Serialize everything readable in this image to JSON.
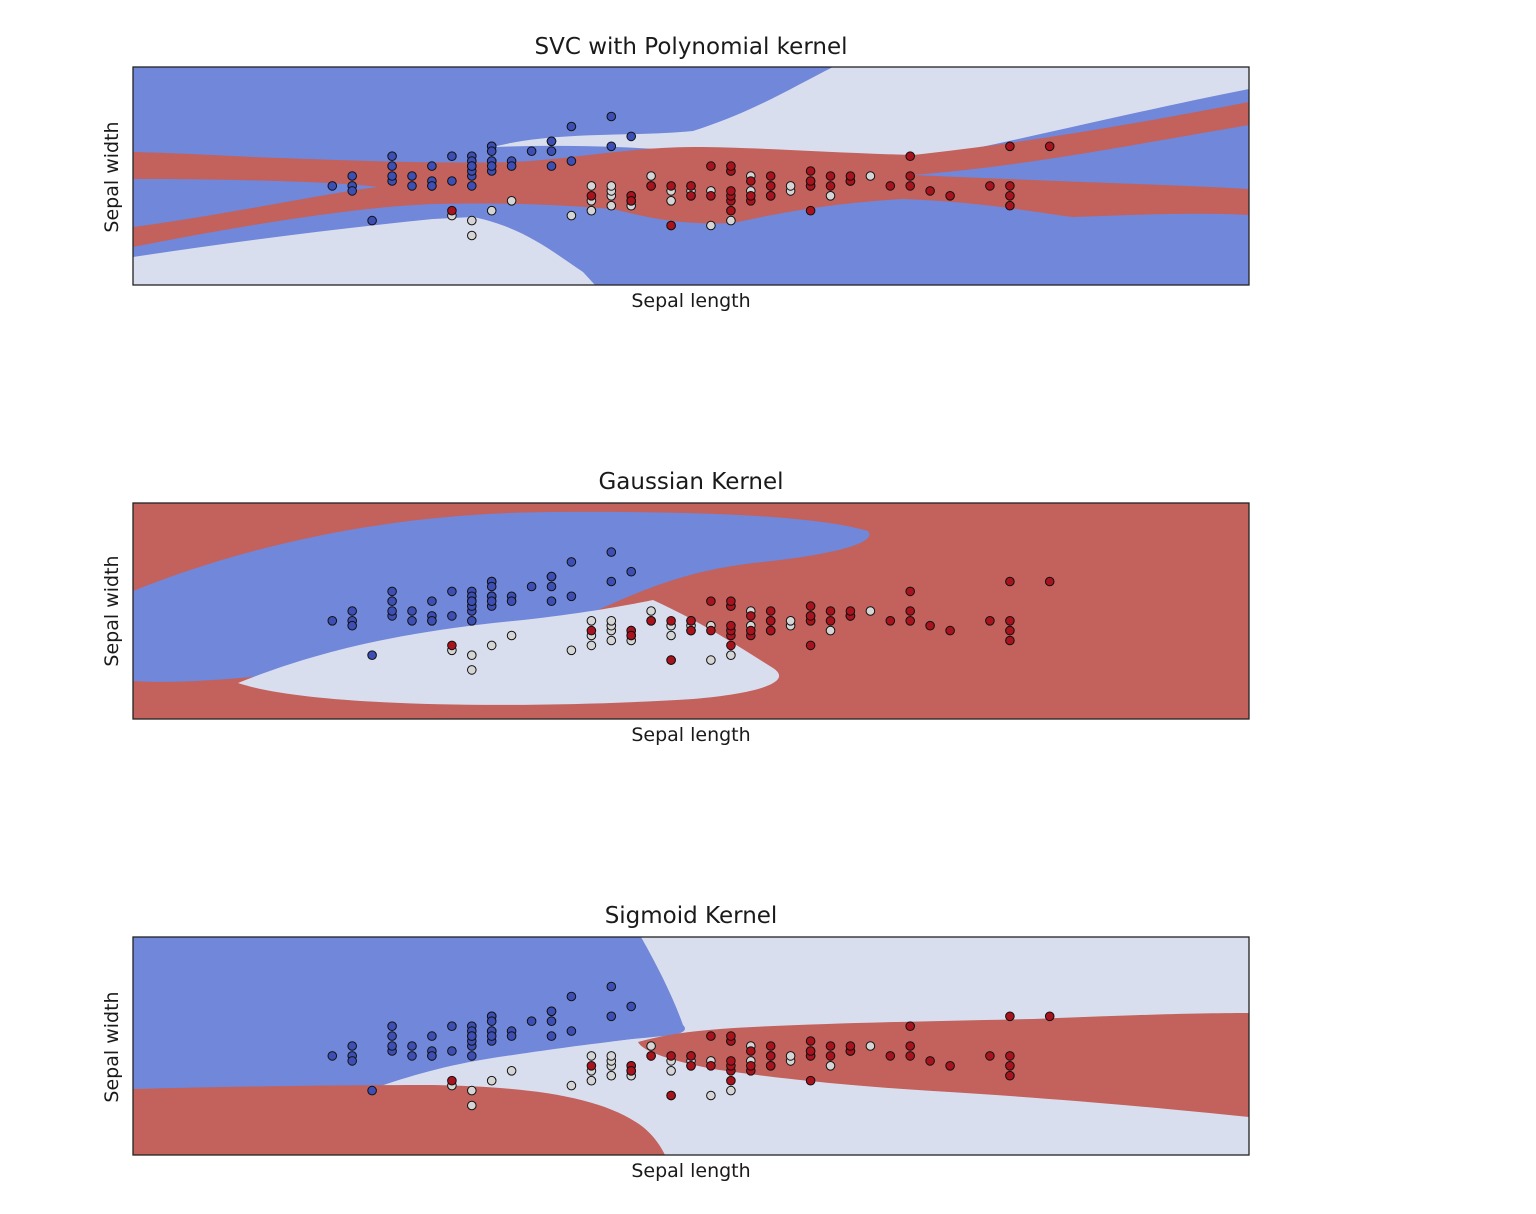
{
  "figure": {
    "colors": {
      "class_0_region": "#7187d9",
      "class_1_region": "#d9deee",
      "class_2_region": "#c3615c",
      "class_0_point": "#3d4fb5",
      "class_1_point": "#d5d5d5",
      "class_2_point": "#a8131d",
      "point_edge": "#111111",
      "axes_frame": "#222222"
    }
  },
  "chart_data": [
    {
      "type": "scatter",
      "title": "SVC with Polynomial kernel",
      "xlabel": "Sepal length",
      "ylabel": "Sepal width",
      "xlim": [
        3.3,
        8.9
      ],
      "ylim": [
        1.0,
        5.4
      ],
      "grid": false,
      "xticks": [],
      "yticks": [],
      "background": "filled decision regions (blue = class 0, light = class 1, red = class 2)",
      "series": [
        {
          "class": 0,
          "color": "#3d4fb5",
          "x": [
            4.3,
            4.4,
            4.4,
            4.4,
            4.5,
            4.6,
            4.6,
            4.6,
            4.6,
            4.7,
            4.7,
            4.8,
            4.8,
            4.8,
            4.8,
            4.9,
            4.9,
            5.0,
            5.0,
            5.0,
            5.0,
            5.0,
            5.0,
            5.0,
            5.1,
            5.1,
            5.1,
            5.1,
            5.1,
            5.1,
            5.1,
            5.2,
            5.2,
            5.3,
            5.4,
            5.4,
            5.4,
            5.4,
            5.5,
            5.5,
            5.7,
            5.7,
            5.8
          ],
          "y": [
            3.0,
            3.0,
            2.9,
            3.2,
            2.3,
            3.1,
            3.4,
            3.6,
            3.2,
            3.2,
            3.0,
            3.0,
            3.4,
            3.1,
            3.0,
            3.6,
            3.1,
            3.0,
            3.2,
            3.6,
            3.5,
            3.3,
            3.4,
            3.4,
            3.5,
            3.5,
            3.8,
            3.8,
            3.7,
            3.3,
            3.4,
            3.5,
            3.4,
            3.7,
            3.9,
            3.9,
            3.4,
            3.7,
            4.2,
            3.5,
            4.4,
            3.8,
            4.0
          ]
        },
        {
          "class": 1,
          "color": "#d5d5d5",
          "x": [
            4.9,
            5.0,
            5.0,
            5.1,
            5.2,
            5.5,
            5.6,
            5.6,
            5.6,
            5.7,
            5.7,
            5.7,
            5.7,
            5.8,
            5.8,
            5.8,
            5.9,
            5.9,
            6.0,
            6.0,
            6.0,
            6.1,
            6.1,
            6.1,
            6.2,
            6.2,
            6.3,
            6.3,
            6.4,
            6.4,
            6.5,
            6.6,
            6.6,
            6.7,
            6.7,
            6.8,
            6.9,
            7.0
          ],
          "y": [
            2.4,
            2.0,
            2.3,
            2.5,
            2.7,
            2.4,
            2.5,
            2.7,
            3.0,
            2.6,
            2.8,
            2.9,
            3.0,
            2.7,
            2.6,
            2.8,
            3.0,
            3.2,
            2.2,
            2.7,
            2.9,
            2.8,
            2.9,
            3.0,
            2.2,
            2.9,
            2.3,
            3.3,
            2.9,
            3.2,
            2.8,
            2.9,
            3.0,
            3.1,
            3.0,
            2.8,
            3.1,
            3.2
          ]
        },
        {
          "class": 2,
          "color": "#a8131d",
          "x": [
            4.9,
            5.6,
            5.8,
            5.8,
            5.8,
            5.9,
            6.0,
            6.0,
            6.1,
            6.1,
            6.2,
            6.2,
            6.3,
            6.3,
            6.3,
            6.3,
            6.3,
            6.3,
            6.4,
            6.4,
            6.4,
            6.5,
            6.5,
            6.5,
            6.5,
            6.7,
            6.7,
            6.7,
            6.7,
            6.8,
            6.8,
            6.9,
            6.9,
            6.9,
            7.1,
            7.2,
            7.2,
            7.2,
            7.3,
            7.4,
            7.6,
            7.7,
            7.7,
            7.7,
            7.7,
            7.9
          ],
          "y": [
            2.5,
            2.8,
            2.7,
            2.8,
            2.7,
            3.0,
            2.2,
            3.0,
            2.8,
            3.0,
            2.8,
            3.4,
            2.5,
            2.7,
            2.8,
            2.9,
            3.3,
            3.4,
            2.7,
            2.8,
            3.1,
            3.0,
            3.2,
            2.8,
            3.0,
            2.5,
            3.0,
            3.1,
            3.3,
            3.0,
            3.2,
            3.1,
            3.1,
            3.2,
            3.0,
            3.6,
            3.0,
            3.2,
            2.9,
            2.8,
            3.0,
            2.6,
            2.8,
            3.0,
            3.8,
            3.8
          ]
        }
      ]
    },
    {
      "type": "scatter",
      "title": "Gaussian Kernel",
      "xlabel": "Sepal length",
      "ylabel": "Sepal width",
      "xlim": [
        3.3,
        8.9
      ],
      "ylim": [
        1.0,
        5.4
      ],
      "grid": false,
      "xticks": [],
      "yticks": [],
      "background": "filled decision regions (blue = class 0, light = class 1, red = class 2)",
      "series": "same points as first chart"
    },
    {
      "type": "scatter",
      "title": "Sigmoid Kernel",
      "xlabel": "Sepal length",
      "ylabel": "Sepal width",
      "xlim": [
        3.3,
        8.9
      ],
      "ylim": [
        1.0,
        5.4
      ],
      "grid": false,
      "xticks": [],
      "yticks": [],
      "background": "filled decision regions (blue = class 0, light = class 1, red = class 2)",
      "series": "same points as first chart"
    }
  ]
}
